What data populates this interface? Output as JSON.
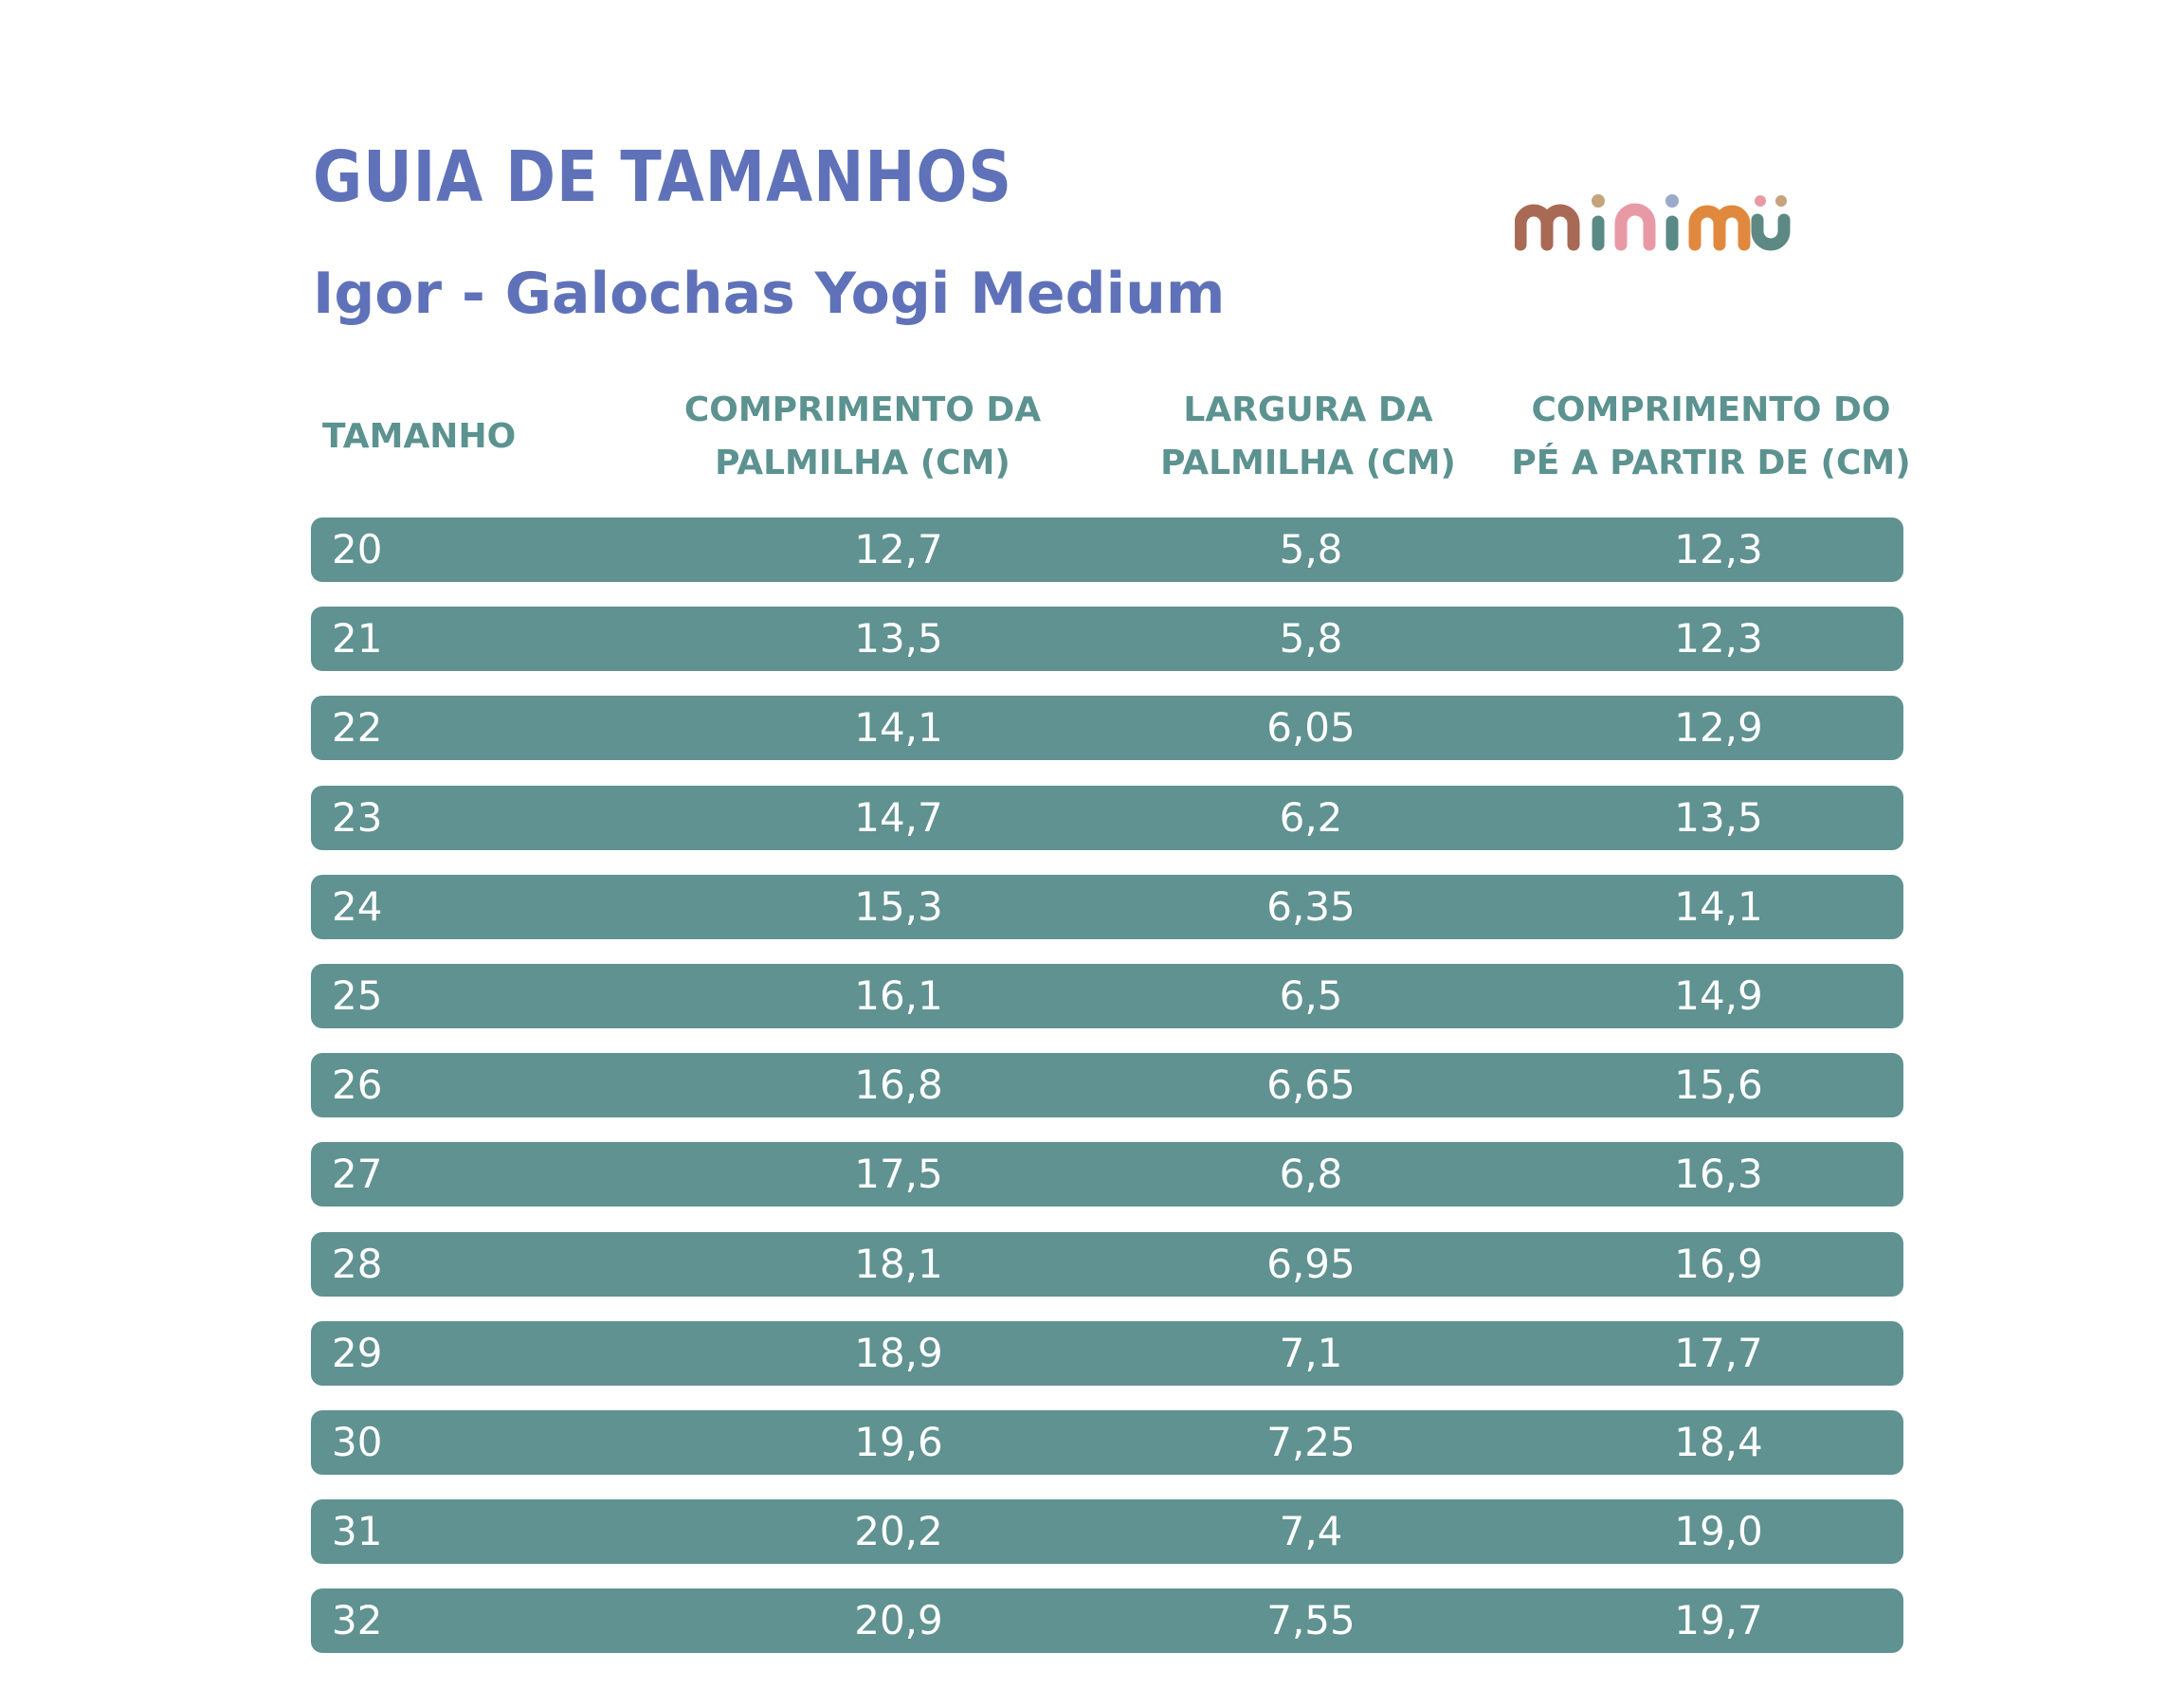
{
  "title": "GUIA DE TAMANHOS",
  "subtitle": "Igor - Galochas Yogi Medium",
  "logo": {
    "text": "minimu",
    "colors": [
      "#a86a55",
      "#c4a37d",
      "#5a8a86",
      "#e79aa5",
      "#9aaac9",
      "#e0893e",
      "#5e8884"
    ]
  },
  "headers": [
    "TAMANHO",
    "COMPRIMENTO DA\nPALMILHA (CM)",
    "LARGURA DA\nPALMILHA (CM)",
    "COMPRIMENTO DO\nPÉ A PARTIR DE (CM)"
  ],
  "rows": [
    {
      "size": "20",
      "insole_length": "12,7",
      "insole_width": "5,8",
      "foot_length": "12,3"
    },
    {
      "size": "21",
      "insole_length": "13,5",
      "insole_width": "5,8",
      "foot_length": "12,3"
    },
    {
      "size": "22",
      "insole_length": "14,1",
      "insole_width": "6,05",
      "foot_length": "12,9"
    },
    {
      "size": "23",
      "insole_length": "14,7",
      "insole_width": "6,2",
      "foot_length": "13,5"
    },
    {
      "size": "24",
      "insole_length": "15,3",
      "insole_width": "6,35",
      "foot_length": "14,1"
    },
    {
      "size": "25",
      "insole_length": "16,1",
      "insole_width": "6,5",
      "foot_length": "14,9"
    },
    {
      "size": "26",
      "insole_length": "16,8",
      "insole_width": "6,65",
      "foot_length": "15,6"
    },
    {
      "size": "27",
      "insole_length": "17,5",
      "insole_width": "6,8",
      "foot_length": "16,3"
    },
    {
      "size": "28",
      "insole_length": "18,1",
      "insole_width": "6,95",
      "foot_length": "16,9"
    },
    {
      "size": "29",
      "insole_length": "18,9",
      "insole_width": "7,1",
      "foot_length": "17,7"
    },
    {
      "size": "30",
      "insole_length": "19,6",
      "insole_width": "7,25",
      "foot_length": "18,4"
    },
    {
      "size": "31",
      "insole_length": "20,2",
      "insole_width": "7,4",
      "foot_length": "19,0"
    },
    {
      "size": "32",
      "insole_length": "20,9",
      "insole_width": "7,55",
      "foot_length": "19,7"
    }
  ]
}
